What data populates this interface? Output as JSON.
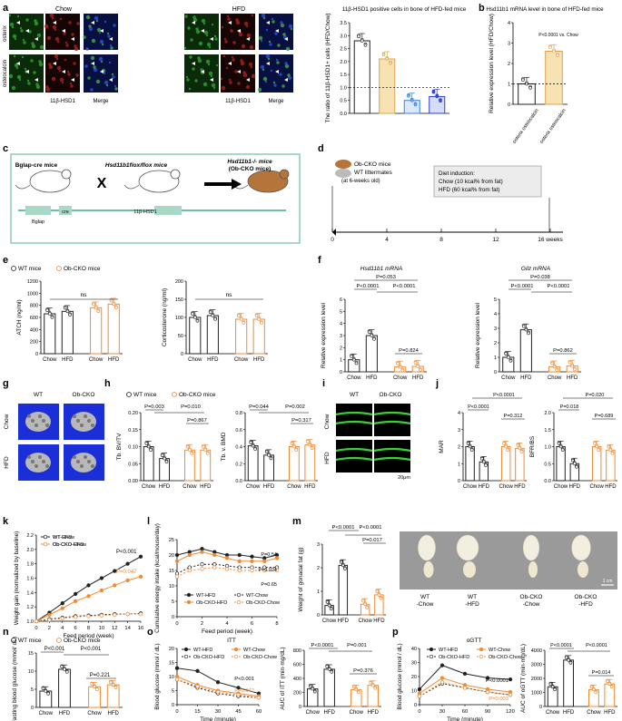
{
  "panel_letters": [
    "a",
    "b",
    "c",
    "d",
    "e",
    "f",
    "g",
    "h",
    "i",
    "j",
    "k",
    "l",
    "m",
    "n",
    "o",
    "p"
  ],
  "colors": {
    "wt": "#222222",
    "ob": "#f08a35",
    "ob_light": "#f6b27a",
    "tan": "#e6c48f",
    "blue": "#3a5dd8",
    "cyan": "#38b4e8",
    "green_img": "#1c7a1c",
    "blue_img": "#1b2bd0",
    "gold": "#d8a24a"
  },
  "a": {
    "chow": "Chow",
    "hfd": "HFD",
    "rows": [
      "osterix",
      "osteocalcin"
    ],
    "cols": [
      "11β-HSD1",
      "Merge",
      "11β-HSD1",
      "Merge"
    ],
    "chart_title": "11β-HSD1 positive cells in bone of HFD-fed mice",
    "ylabel": "The ratio of 11β-HSD1+ cells (HFD/Chow)",
    "yticks": [
      "0.0",
      "0.5",
      "1.0",
      "1.5",
      "2.0",
      "2.5",
      "3.0",
      "3.5"
    ],
    "categories": [
      "Osterix",
      "Osteocalcin",
      "OSCAR",
      "Cathepsin K"
    ]
  },
  "b": {
    "title": "Hsd11b1 mRNA level in bone of HFD-fed mice",
    "ylabel": "Relative expression level (HFD/Chow)",
    "yticks": [
      "0",
      "1",
      "2",
      "3",
      "4"
    ],
    "pvalue": "P<0.0001 vs. Chow",
    "categories": [
      "osterix osteocalcin",
      "osterix osteocalcin"
    ]
  },
  "c": {
    "bglap_cre": "Bglap-cre mice",
    "hsd_flox": "Hsd11b1flox/flox mice",
    "hsd_ko": "Hsd11b1-/- mice",
    "obcko": "(Ob-CKO mice)",
    "x": "X",
    "gene1": "Bglap",
    "gene2": "cre",
    "gene3": "11β-HSD1"
  },
  "d": {
    "mice1": "Ob-CKO mice",
    "mice2": "WT littermates",
    "age": "(at 6-weeks old)",
    "diet_title": "Diet induction:",
    "diet1": "Chow (10 kcal% from fat)",
    "diet2": "HFD (60 kcal% from fat)",
    "ticks": [
      "0",
      "4",
      "8",
      "12",
      "16 weeks"
    ]
  },
  "legend": {
    "wt": "WT mice",
    "ob": "Ob-CKO mice"
  },
  "e": {
    "ylabel1": "ATCH (ng/ml)",
    "yticks1": [
      "0",
      "200",
      "400",
      "600",
      "800",
      "1000",
      "1200"
    ],
    "ylabel2": "Corticosterone (ng/ml)",
    "yticks2": [
      "0",
      "50",
      "100",
      "150",
      "200"
    ],
    "ns": "ns",
    "xcats": [
      "Chow",
      "HFD",
      "Chow",
      "HFD"
    ]
  },
  "f": {
    "title1": "Hsd11b1 mRNA",
    "title2": "Gilz mRNA",
    "ylabel": "Relative expression level",
    "yticks1": [
      "0",
      "1",
      "2",
      "3",
      "4",
      "5",
      "6"
    ],
    "yticks2": [
      "0",
      "1",
      "2",
      "3",
      "4",
      "5"
    ],
    "p1": [
      "P=0.053",
      "P<0.0001",
      "P<0.0001",
      "P=0.824"
    ],
    "p2": [
      "P=0.038",
      "P<0.0001",
      "P<0.0001",
      "P=0.862"
    ]
  },
  "g": {
    "wt": "WT",
    "ob": "Ob-CKO",
    "chow": "Chow",
    "hfd": "HFD"
  },
  "h": {
    "ylabel1": "Tb. BV/TV",
    "yticks1": [
      "0.00",
      "0.05",
      "0.10",
      "0.15",
      "0.20"
    ],
    "ylabel2": "Tb. v. BMD",
    "yticks2": [
      "0.0",
      "0.2",
      "0.4",
      "0.6",
      "0.8"
    ],
    "p1": [
      "P=0.003",
      "P=0.010",
      "P=0.867"
    ],
    "p2": [
      "P=0.044",
      "P=0.002",
      "P=0.317"
    ]
  },
  "i": {
    "wt": "WT",
    "ob": "Ob-CKO",
    "chow": "Chow",
    "hfd": "HFD",
    "scale": "20μm"
  },
  "j": {
    "ylabel1": "MAR",
    "yticks1": [
      "0",
      "1",
      "2",
      "3",
      "4"
    ],
    "ylabel2": "BFR/BS",
    "yticks2": [
      "0.0",
      "0.5",
      "1.0",
      "1.5",
      "2.0"
    ],
    "p1": [
      "P<0.0001",
      "P<0.0001",
      "P=0.312"
    ],
    "p2": [
      "P=0.020",
      "P=0.018",
      "P=0.689"
    ]
  },
  "k": {
    "ylabel": "Weight gain (normalized by baseline)",
    "xlabel": "Feed period (week)",
    "xticks": [
      "0",
      "2",
      "4",
      "6",
      "8",
      "10",
      "12",
      "14",
      "16"
    ],
    "yticks": [
      "1.0",
      "1.2",
      "1.4",
      "1.6",
      "1.8",
      "2.0",
      "2.2"
    ],
    "series": [
      "WT-HFD",
      "WT-Chow",
      "Ob-CKO-HFD",
      "Ob-CKO-Chow"
    ],
    "p1": "P<0.001",
    "p2": "P=0.047"
  },
  "l": {
    "ylabel": "Cumulative energy intake (kcal/mouse/day)",
    "xlabel": "Feed period (week)",
    "xticks": [
      "0",
      "2",
      "4",
      "6",
      "8"
    ],
    "yticks": [
      "0",
      "5",
      "10",
      "15",
      "20",
      "25"
    ],
    "series": [
      "WT-HFD",
      "WT-Chow",
      "Ob-CKO-HFD",
      "Ob-CKO-Chow"
    ],
    "pv": [
      "P=0.54",
      "P=0.024",
      "P=0.65"
    ]
  },
  "m": {
    "ylabel": "Weight of gonadal fat (g)",
    "yticks": [
      "0",
      "1",
      "2",
      "3"
    ],
    "p": [
      "P<0.0001",
      "P<0.0001",
      "P=0.017"
    ],
    "photo_labels": [
      "WT -Chow",
      "WT -HFD",
      "Ob-CKO -Chow",
      "Ob-CKO -HFD"
    ],
    "scale": "1 cm"
  },
  "n": {
    "ylabel": "Fasting blood glucose (mmol/ dL)",
    "yticks": [
      "0",
      "5",
      "10",
      "15"
    ],
    "p": [
      "P<0.001",
      "P<0.001",
      "P=0.221"
    ]
  },
  "o": {
    "title": "ITT",
    "ylabel": "Blood glucose (mmol / dL)",
    "xlabel": "Time (minute)",
    "xticks": [
      "0",
      "15",
      "30",
      "45",
      "60"
    ],
    "yticks": [
      "0",
      "5",
      "10",
      "15",
      "20"
    ],
    "series": [
      "WT-HFD",
      "WT-Chow",
      "Ob-CKO-HFD",
      "Ob-CKO-Chow"
    ],
    "pv": [
      "P<0.001",
      "P=0.042"
    ],
    "ylabel2": "AUC of ITT (min·mg/dL)",
    "yticks2": [
      "0",
      "200",
      "400",
      "600",
      "800"
    ],
    "p2": [
      "P<0.0001",
      "P=0.001",
      "P=0.376"
    ]
  },
  "p": {
    "title": "oGTT",
    "ylabel": "Blood glucose (mmol / dL)",
    "xlabel": "Time (minute)",
    "xticks": [
      "0",
      "30",
      "60",
      "90",
      "120"
    ],
    "yticks": [
      "0",
      "10",
      "20",
      "30",
      "40"
    ],
    "series": [
      "WT-HFD",
      "WT-Chow",
      "Ob-CKO-HFD",
      "Ob-CKO-Chow"
    ],
    "pv": [
      "P<0.0001",
      "P=0.003"
    ],
    "ylabel2": "AUC of oGTT (min·mg/dL)",
    "yticks2": [
      "0",
      "1000",
      "2000",
      "3000",
      "4000"
    ],
    "p2": [
      "P<0.0001",
      "P<0.0001",
      "P=0.014"
    ]
  },
  "chart_data": [
    {
      "id": "a-bar",
      "type": "bar",
      "categories": [
        "Osterix",
        "Osteocalcin",
        "OSCAR",
        "Cathepsin K"
      ],
      "values": [
        2.8,
        2.1,
        0.5,
        0.65
      ],
      "ylim": [
        0,
        3.5
      ]
    },
    {
      "id": "b-bar",
      "type": "bar",
      "categories": [
        "osterix osteocalcin (Chow)",
        "osterix osteocalcin (HFD)"
      ],
      "values": [
        1.0,
        2.6
      ],
      "ylim": [
        0,
        4
      ]
    },
    {
      "id": "e1",
      "type": "bar",
      "categories": [
        "WT Chow",
        "WT HFD",
        "Ob-CKO Chow",
        "Ob-CKO HFD"
      ],
      "values": [
        660,
        700,
        760,
        820
      ],
      "ylim": [
        0,
        1200
      ]
    },
    {
      "id": "e2",
      "type": "bar",
      "categories": [
        "WT Chow",
        "WT HFD",
        "Ob-CKO Chow",
        "Ob-CKO HFD"
      ],
      "values": [
        100,
        105,
        95,
        95
      ],
      "ylim": [
        0,
        200
      ]
    },
    {
      "id": "f1",
      "type": "bar",
      "categories": [
        "WT Chow",
        "WT HFD",
        "Ob-CKO Chow",
        "Ob-CKO HFD"
      ],
      "values": [
        1.0,
        3.0,
        0.4,
        0.45
      ],
      "ylim": [
        0,
        6
      ]
    },
    {
      "id": "f2",
      "type": "bar",
      "categories": [
        "WT Chow",
        "WT HFD",
        "Ob-CKO Chow",
        "Ob-CKO HFD"
      ],
      "values": [
        1.0,
        2.9,
        0.35,
        0.4
      ],
      "ylim": [
        0,
        5
      ]
    },
    {
      "id": "h1",
      "type": "bar",
      "categories": [
        "WT Chow",
        "WT HFD",
        "Ob-CKO Chow",
        "Ob-CKO HFD"
      ],
      "values": [
        0.1,
        0.065,
        0.09,
        0.09
      ],
      "ylim": [
        0,
        0.2
      ]
    },
    {
      "id": "h2",
      "type": "bar",
      "categories": [
        "WT Chow",
        "WT HFD",
        "Ob-CKO Chow",
        "Ob-CKO HFD"
      ],
      "values": [
        0.41,
        0.3,
        0.4,
        0.42
      ],
      "ylim": [
        0,
        0.8
      ]
    },
    {
      "id": "j1",
      "type": "bar",
      "categories": [
        "WT Chow",
        "WT HFD",
        "Ob-CKO Chow",
        "Ob-CKO HFD"
      ],
      "values": [
        2.0,
        1.1,
        2.0,
        1.9
      ],
      "ylim": [
        0,
        4
      ]
    },
    {
      "id": "j2",
      "type": "bar",
      "categories": [
        "WT Chow",
        "WT HFD",
        "Ob-CKO Chow",
        "Ob-CKO HFD"
      ],
      "values": [
        1.0,
        0.5,
        1.0,
        0.9
      ],
      "ylim": [
        0,
        2
      ]
    },
    {
      "id": "k",
      "type": "line",
      "x": [
        0,
        2,
        4,
        6,
        8,
        10,
        12,
        14,
        16
      ],
      "ylim": [
        1.0,
        2.2
      ],
      "series": [
        {
          "name": "WT-HFD",
          "values": [
            1.0,
            1.12,
            1.25,
            1.38,
            1.5,
            1.6,
            1.7,
            1.8,
            1.9
          ]
        },
        {
          "name": "WT-Chow",
          "values": [
            1.0,
            1.03,
            1.05,
            1.07,
            1.08,
            1.09,
            1.1,
            1.1,
            1.11
          ]
        },
        {
          "name": "Ob-CKO-HFD",
          "values": [
            1.0,
            1.09,
            1.18,
            1.28,
            1.35,
            1.43,
            1.5,
            1.57,
            1.62
          ]
        },
        {
          "name": "Ob-CKO-Chow",
          "values": [
            1.0,
            1.02,
            1.04,
            1.06,
            1.07,
            1.08,
            1.09,
            1.1,
            1.1
          ]
        }
      ]
    },
    {
      "id": "l",
      "type": "line",
      "x": [
        0,
        1,
        2,
        3,
        4,
        5,
        6,
        7,
        8
      ],
      "ylim": [
        0,
        25
      ],
      "series": [
        {
          "name": "WT-HFD",
          "values": [
            20,
            21,
            22,
            21,
            20,
            20,
            19.5,
            19,
            20
          ]
        },
        {
          "name": "WT-Chow",
          "values": [
            14,
            16,
            17,
            17,
            16.5,
            16,
            16,
            16,
            16
          ]
        },
        {
          "name": "Ob-CKO-HFD",
          "values": [
            18,
            20,
            21,
            20,
            19,
            18,
            18,
            18,
            19
          ]
        },
        {
          "name": "Ob-CKO-Chow",
          "values": [
            13,
            15,
            15.5,
            16,
            15.5,
            15,
            15,
            15,
            15
          ]
        }
      ]
    },
    {
      "id": "m",
      "type": "bar",
      "categories": [
        "WT Chow",
        "WT HFD",
        "Ob-CKO Chow",
        "Ob-CKO HFD"
      ],
      "values": [
        0.4,
        2.1,
        0.45,
        0.85
      ],
      "ylim": [
        0,
        3
      ]
    },
    {
      "id": "n",
      "type": "bar",
      "categories": [
        "WT Chow",
        "WT HFD",
        "Ob-CKO Chow",
        "Ob-CKO HFD"
      ],
      "values": [
        4.5,
        10.5,
        5.7,
        6.2
      ],
      "ylim": [
        0,
        15
      ]
    },
    {
      "id": "o1",
      "type": "line",
      "x": [
        0,
        15,
        30,
        45,
        60
      ],
      "ylim": [
        0,
        20
      ],
      "series": [
        {
          "name": "WT-HFD",
          "values": [
            13,
            12,
            8,
            6,
            4
          ]
        },
        {
          "name": "WT-Chow",
          "values": [
            9,
            6,
            4,
            3,
            2.5
          ]
        },
        {
          "name": "Ob-CKO-HFD",
          "values": [
            10,
            7,
            5,
            4,
            3
          ]
        },
        {
          "name": "Ob-CKO-Chow",
          "values": [
            9,
            6.5,
            4.5,
            3.5,
            2.5
          ]
        }
      ]
    },
    {
      "id": "o2",
      "type": "bar",
      "categories": [
        "WT Chow",
        "WT HFD",
        "Ob-CKO Chow",
        "Ob-CKO HFD"
      ],
      "values": [
        250,
        530,
        240,
        300
      ],
      "ylim": [
        0,
        800
      ]
    },
    {
      "id": "p1",
      "type": "line",
      "x": [
        0,
        30,
        60,
        90,
        120
      ],
      "ylim": [
        0,
        40
      ],
      "series": [
        {
          "name": "WT-HFD",
          "values": [
            11,
            28,
            22,
            19,
            18
          ]
        },
        {
          "name": "WT-Chow",
          "values": [
            6,
            15,
            12,
            9,
            7
          ]
        },
        {
          "name": "Ob-CKO-HFD",
          "values": [
            8,
            19,
            14,
            11,
            9
          ]
        },
        {
          "name": "Ob-CKO-Chow",
          "values": [
            6,
            16,
            12,
            9,
            7
          ]
        }
      ]
    },
    {
      "id": "p2",
      "type": "bar",
      "categories": [
        "WT Chow",
        "WT HFD",
        "Ob-CKO Chow",
        "Ob-CKO HFD"
      ],
      "values": [
        1400,
        3300,
        1200,
        1600
      ],
      "ylim": [
        0,
        4000
      ]
    }
  ]
}
